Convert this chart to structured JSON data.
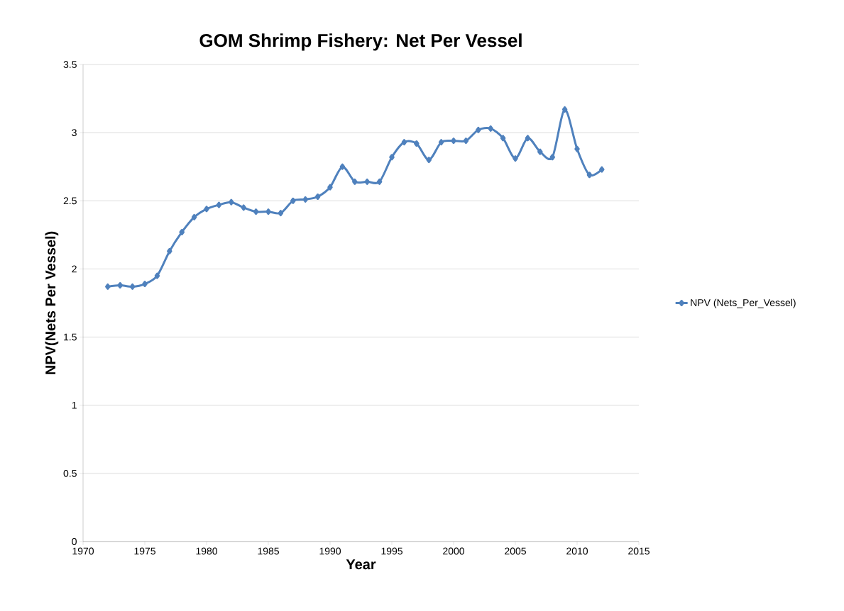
{
  "chart_data": {
    "type": "line",
    "title": "GOM Shrimp Fishery: Net Per Vessel",
    "xlabel": "Year",
    "ylabel": "NPV(Nets Per Vessel)",
    "x": [
      1972,
      1973,
      1974,
      1975,
      1976,
      1977,
      1978,
      1979,
      1980,
      1981,
      1982,
      1983,
      1984,
      1985,
      1986,
      1987,
      1988,
      1989,
      1990,
      1991,
      1992,
      1993,
      1994,
      1995,
      1996,
      1997,
      1998,
      1999,
      2000,
      2001,
      2002,
      2003,
      2004,
      2005,
      2006,
      2007,
      2008,
      2009,
      2010,
      2011,
      2012
    ],
    "series": [
      {
        "name": "NPV (Nets_Per_Vessel)",
        "color": "#4f81bd",
        "values": [
          1.87,
          1.88,
          1.87,
          1.89,
          1.95,
          2.13,
          2.27,
          2.38,
          2.44,
          2.47,
          2.49,
          2.45,
          2.42,
          2.42,
          2.41,
          2.5,
          2.51,
          2.53,
          2.6,
          2.75,
          2.64,
          2.64,
          2.64,
          2.82,
          2.93,
          2.92,
          2.8,
          2.93,
          2.94,
          2.94,
          3.02,
          3.03,
          2.96,
          2.81,
          2.96,
          2.86,
          2.82,
          3.17,
          2.88,
          2.69,
          2.73
        ]
      }
    ],
    "xlim": [
      1970,
      2015
    ],
    "xticks": [
      1970,
      1975,
      1980,
      1985,
      1990,
      1995,
      2000,
      2005,
      2010,
      2015
    ],
    "ylim": [
      0,
      3.5
    ],
    "yticks": [
      0,
      0.5,
      1,
      1.5,
      2,
      2.5,
      3,
      3.5
    ],
    "grid": "y",
    "legend": "right",
    "marker": "diamond",
    "line_style": "solid"
  }
}
